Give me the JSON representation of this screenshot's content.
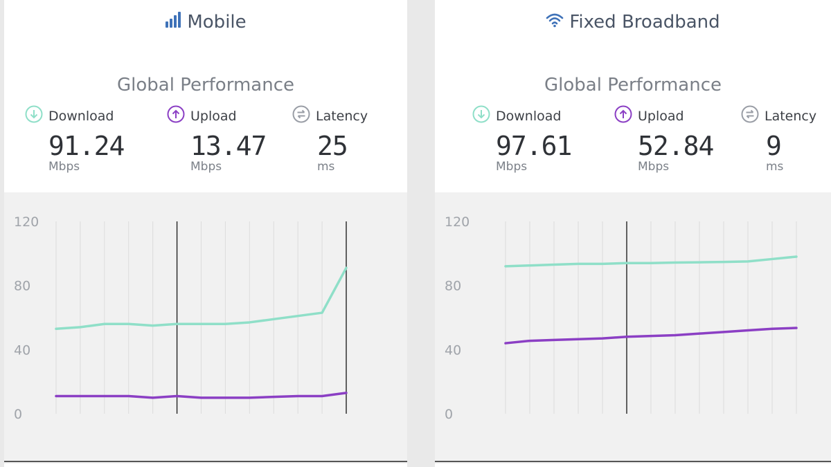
{
  "colors": {
    "download": "#8fdfc8",
    "upload": "#8b3fc4",
    "latency": "#9a9ea6",
    "header_icon": "#3f72b8"
  },
  "panels": [
    {
      "title": "Mobile",
      "icon": "signal-bars-icon",
      "subtitle": "Global Performance",
      "metrics": [
        {
          "label": "Download",
          "icon": "download-arrow-icon",
          "value": "91.24",
          "unit": "Mbps"
        },
        {
          "label": "Upload",
          "icon": "upload-arrow-icon",
          "value": "13.47",
          "unit": "Mbps"
        },
        {
          "label": "Latency",
          "icon": "latency-icon",
          "value": "25",
          "unit": "ms"
        }
      ]
    },
    {
      "title": "Fixed Broadband",
      "icon": "wifi-icon",
      "subtitle": "Global Performance",
      "metrics": [
        {
          "label": "Download",
          "icon": "download-arrow-icon",
          "value": "97.61",
          "unit": "Mbps"
        },
        {
          "label": "Upload",
          "icon": "upload-arrow-icon",
          "value": "52.84",
          "unit": "Mbps"
        },
        {
          "label": "Latency",
          "icon": "latency-icon",
          "value": "9",
          "unit": "ms"
        }
      ]
    }
  ],
  "chart_data": [
    {
      "type": "line",
      "title": "",
      "ylim": [
        0,
        120
      ],
      "yticks": [
        "0",
        "40",
        "80",
        "120"
      ],
      "grid": true,
      "x": [
        1,
        2,
        3,
        4,
        5,
        6,
        7,
        8,
        9,
        10,
        11,
        12,
        13
      ],
      "markers_x": [
        6,
        13
      ],
      "series": [
        {
          "name": "Download",
          "values": [
            53,
            54,
            56,
            56,
            55,
            56,
            56,
            56,
            57,
            59,
            61,
            63,
            91
          ]
        },
        {
          "name": "Upload",
          "values": [
            11,
            11,
            11,
            11,
            10,
            11,
            10,
            10,
            10,
            10.5,
            11,
            11,
            13
          ]
        }
      ]
    },
    {
      "type": "line",
      "title": "",
      "ylim": [
        0,
        120
      ],
      "yticks": [
        "0",
        "40",
        "80",
        "120"
      ],
      "grid": true,
      "x": [
        1,
        2,
        3,
        4,
        5,
        6,
        7,
        8,
        9,
        10,
        11,
        12,
        13
      ],
      "markers_x": [
        6
      ],
      "series": [
        {
          "name": "Download",
          "values": [
            92,
            92.5,
            93,
            93.5,
            93.5,
            94,
            94,
            94.3,
            94.5,
            94.7,
            95,
            96.5,
            98
          ]
        },
        {
          "name": "Upload",
          "values": [
            44,
            45.5,
            46,
            46.5,
            47,
            48,
            48.5,
            49,
            50,
            51,
            52,
            53,
            53.5
          ]
        }
      ]
    }
  ]
}
